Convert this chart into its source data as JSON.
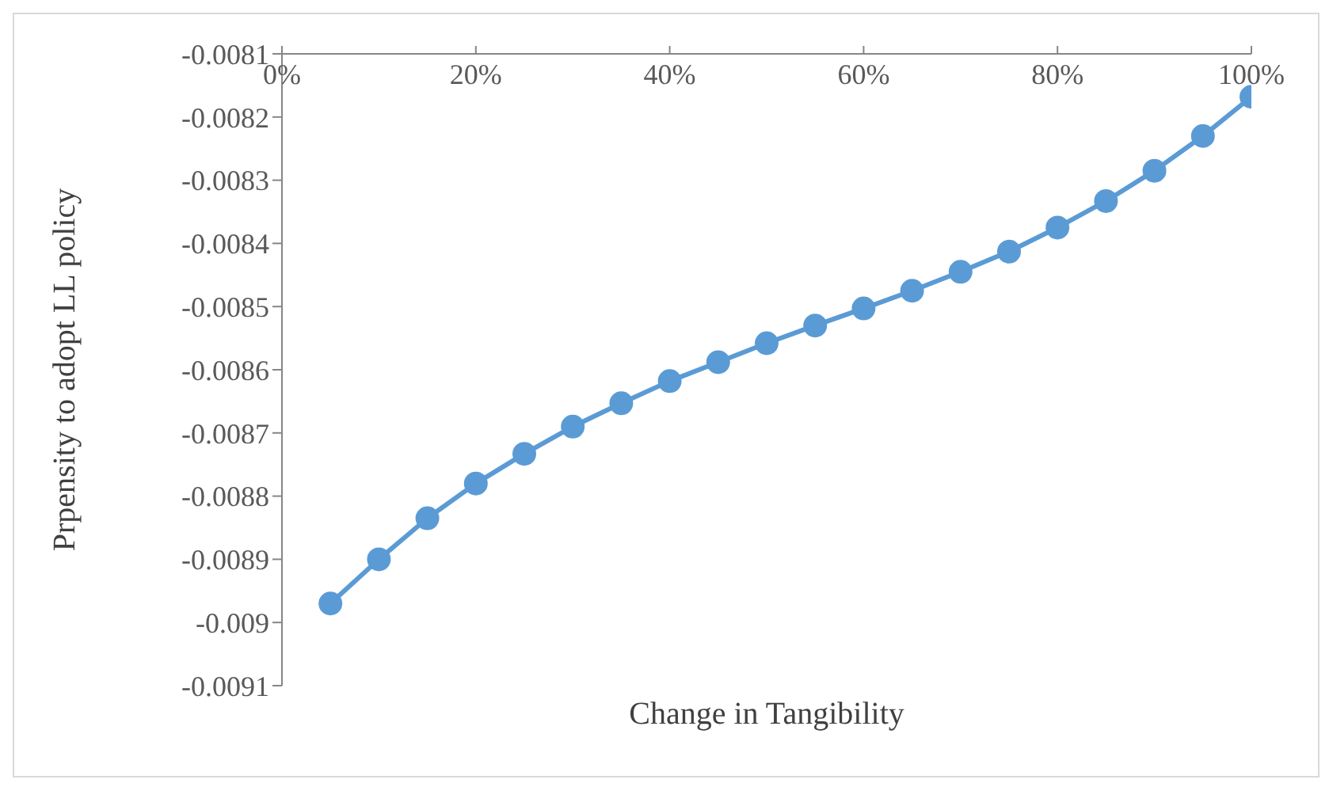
{
  "chart_data": {
    "type": "line",
    "xlabel": "Change in Tangibility",
    "ylabel": "Prpensity to adopt LL policy",
    "x": [
      5,
      10,
      15,
      20,
      25,
      30,
      35,
      40,
      45,
      50,
      55,
      60,
      65,
      70,
      75,
      80,
      85,
      90,
      95,
      100
    ],
    "series": [
      {
        "color": "#5b9bd5",
        "values": [
          -0.00897,
          -0.0089,
          -0.008835,
          -0.00878,
          -0.008733,
          -0.00869,
          -0.008653,
          -0.008618,
          -0.008588,
          -0.008558,
          -0.00853,
          -0.008503,
          -0.008475,
          -0.008445,
          -0.008413,
          -0.008375,
          -0.008333,
          -0.008285,
          -0.00823,
          -0.008168
        ]
      }
    ],
    "xlim": [
      0,
      100
    ],
    "xticks": [
      {
        "value": 0,
        "label": "0%"
      },
      {
        "value": 20,
        "label": "20%"
      },
      {
        "value": 40,
        "label": "40%"
      },
      {
        "value": 60,
        "label": "60%"
      },
      {
        "value": 80,
        "label": "80%"
      },
      {
        "value": 100,
        "label": "100%"
      }
    ],
    "ylim": [
      -0.0091,
      -0.0081
    ],
    "yticks": [
      -0.0081,
      -0.0082,
      -0.0083,
      -0.0084,
      -0.0085,
      -0.0086,
      -0.0087,
      -0.0088,
      -0.0089,
      -0.009,
      -0.0091
    ],
    "grid": false,
    "legend": false,
    "marker": "circle",
    "line_style": "solid"
  }
}
